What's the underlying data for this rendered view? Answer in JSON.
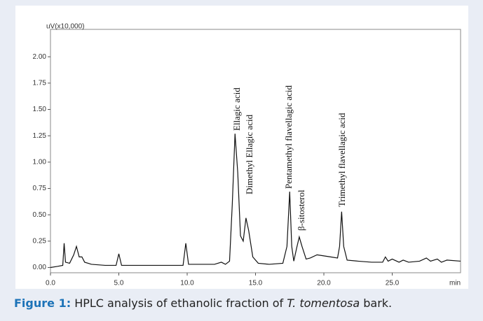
{
  "chart_data": {
    "type": "line",
    "y_label": "uV(x10,000)",
    "x_unit": "min",
    "xlim": [
      0,
      30
    ],
    "ylim": [
      -0.05,
      2.26
    ],
    "xticks": [
      {
        "value": 0,
        "label": "0.0"
      },
      {
        "value": 5,
        "label": "5.0"
      },
      {
        "value": 10,
        "label": "10.0"
      },
      {
        "value": 15,
        "label": "15.0"
      },
      {
        "value": 20,
        "label": "20.0"
      },
      {
        "value": 25,
        "label": "25.0"
      }
    ],
    "yticks": [
      {
        "value": 0,
        "label": "0.00"
      },
      {
        "value": 0.25,
        "label": "0.25"
      },
      {
        "value": 0.5,
        "label": "0.50"
      },
      {
        "value": 0.75,
        "label": "0.75"
      },
      {
        "value": 1,
        "label": "1.00"
      },
      {
        "value": 1.25,
        "label": "1.25"
      },
      {
        "value": 1.5,
        "label": "1.50"
      },
      {
        "value": 1.75,
        "label": "1.75"
      },
      {
        "value": 2,
        "label": "2.00"
      }
    ],
    "x": [
      0,
      0.5,
      0.9,
      1.0,
      1.1,
      1.4,
      1.7,
      1.9,
      2.1,
      2.3,
      2.5,
      3.0,
      4.0,
      4.8,
      5.0,
      5.2,
      6.0,
      8.0,
      9.7,
      9.9,
      10.1,
      11.0,
      12.0,
      12.5,
      12.8,
      13.1,
      13.3,
      13.5,
      13.7,
      13.9,
      14.1,
      14.3,
      14.5,
      14.8,
      15.2,
      16.0,
      17.0,
      17.3,
      17.5,
      17.65,
      17.8,
      18.0,
      18.2,
      18.4,
      18.7,
      19.0,
      19.5,
      20.0,
      20.5,
      21.0,
      21.15,
      21.3,
      21.45,
      21.7,
      22.5,
      23.5,
      24.3,
      24.5,
      24.7,
      25.0,
      25.5,
      25.8,
      26.2,
      27.0,
      27.5,
      27.8,
      28.3,
      28.6,
      29.0,
      30.0
    ],
    "series": [
      {
        "color": "#111111",
        "values": [
          0,
          0.01,
          0.02,
          0.23,
          0.05,
          0.04,
          0.12,
          0.2,
          0.1,
          0.1,
          0.05,
          0.03,
          0.02,
          0.02,
          0.13,
          0.02,
          0.02,
          0.02,
          0.02,
          0.23,
          0.03,
          0.03,
          0.03,
          0.05,
          0.03,
          0.06,
          0.6,
          1.27,
          0.9,
          0.3,
          0.25,
          0.47,
          0.35,
          0.1,
          0.04,
          0.03,
          0.04,
          0.2,
          0.72,
          0.2,
          0.06,
          0.18,
          0.29,
          0.2,
          0.08,
          0.09,
          0.12,
          0.11,
          0.1,
          0.09,
          0.2,
          0.53,
          0.2,
          0.07,
          0.06,
          0.05,
          0.05,
          0.1,
          0.06,
          0.08,
          0.05,
          0.07,
          0.05,
          0.06,
          0.09,
          0.06,
          0.08,
          0.05,
          0.07,
          0.06
        ]
      }
    ],
    "annotations": [
      "Ellagic acid",
      "Dimethyl Ellagic acid",
      "Pentamethyl flavellagic acid",
      "β-sitosterol",
      "Trimethyl flavellagic acid"
    ]
  },
  "caption": {
    "label": "Figure 1:",
    "text": "HPLC analysis of ethanolic fraction of",
    "species": "T. tomentosa",
    "end": "bark."
  }
}
